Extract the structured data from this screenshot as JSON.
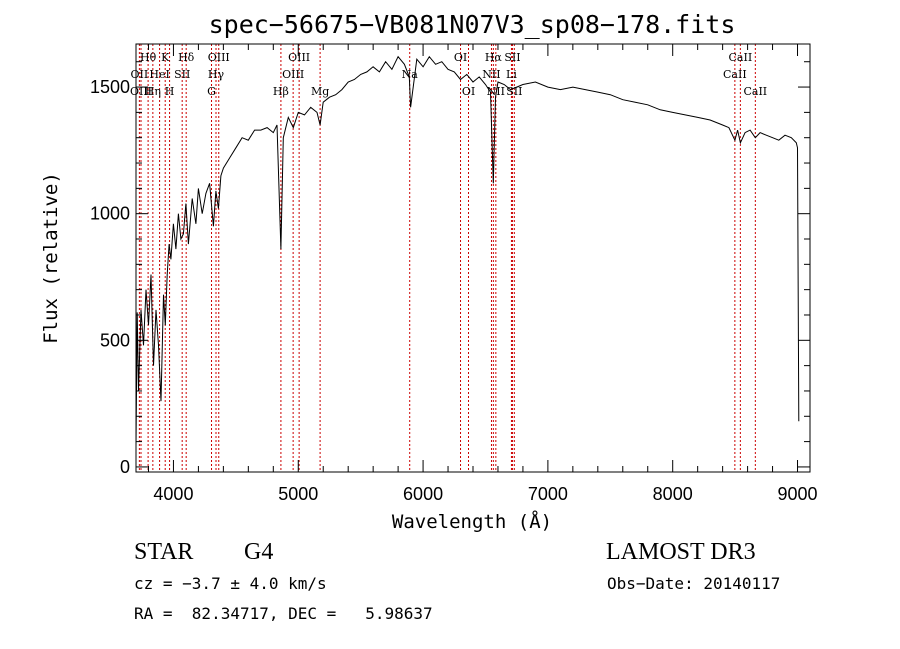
{
  "chart_data": {
    "type": "line",
    "title": "spec−56675−VB081N07V3_sp08−178.fits",
    "xlabel": "Wavelength (Å)",
    "ylabel": "Flux (relative)",
    "xlim": [
      3700,
      9100
    ],
    "ylim": [
      -20,
      1670
    ],
    "x_ticks": [
      4000,
      5000,
      6000,
      7000,
      8000,
      9000
    ],
    "y_ticks": [
      0,
      500,
      1000,
      1500
    ],
    "x_minor_step": 200,
    "y_minor_step": 100,
    "series": [
      {
        "name": "flux",
        "x": [
          3700,
          3710,
          3720,
          3740,
          3760,
          3780,
          3800,
          3820,
          3840,
          3860,
          3880,
          3900,
          3920,
          3935,
          3950,
          3965,
          3980,
          4000,
          4020,
          4040,
          4060,
          4080,
          4100,
          4120,
          4150,
          4180,
          4200,
          4230,
          4260,
          4290,
          4320,
          4340,
          4360,
          4380,
          4400,
          4450,
          4500,
          4550,
          4600,
          4650,
          4700,
          4750,
          4800,
          4830,
          4861,
          4880,
          4920,
          4960,
          5000,
          5050,
          5100,
          5150,
          5175,
          5200,
          5250,
          5300,
          5350,
          5400,
          5450,
          5500,
          5550,
          5600,
          5650,
          5700,
          5750,
          5800,
          5850,
          5890,
          5900,
          5950,
          6000,
          6050,
          6100,
          6150,
          6200,
          6250,
          6300,
          6350,
          6400,
          6450,
          6500,
          6540,
          6563,
          6580,
          6600,
          6650,
          6700,
          6750,
          6800,
          6900,
          7000,
          7100,
          7200,
          7300,
          7400,
          7500,
          7600,
          7700,
          7800,
          7900,
          8000,
          8100,
          8200,
          8300,
          8400,
          8450,
          8498,
          8520,
          8542,
          8580,
          8620,
          8662,
          8700,
          8750,
          8800,
          8850,
          8900,
          8950,
          8990,
          9000,
          9010
        ],
        "y": [
          80,
          610,
          300,
          620,
          480,
          700,
          560,
          760,
          400,
          620,
          480,
          260,
          680,
          560,
          760,
          880,
          820,
          960,
          860,
          1000,
          900,
          920,
          1040,
          880,
          1060,
          960,
          1100,
          1000,
          1080,
          1120,
          950,
          1090,
          1020,
          1150,
          1180,
          1220,
          1260,
          1300,
          1290,
          1330,
          1330,
          1340,
          1320,
          1350,
          860,
          1300,
          1380,
          1340,
          1400,
          1390,
          1420,
          1400,
          1350,
          1440,
          1460,
          1470,
          1490,
          1520,
          1530,
          1550,
          1560,
          1580,
          1560,
          1600,
          1570,
          1620,
          1590,
          1540,
          1420,
          1610,
          1580,
          1620,
          1590,
          1600,
          1570,
          1560,
          1530,
          1550,
          1520,
          1540,
          1510,
          1480,
          1120,
          1460,
          1520,
          1510,
          1490,
          1500,
          1510,
          1520,
          1500,
          1490,
          1500,
          1490,
          1480,
          1470,
          1450,
          1440,
          1430,
          1410,
          1400,
          1390,
          1380,
          1370,
          1350,
          1340,
          1290,
          1330,
          1280,
          1320,
          1330,
          1300,
          1320,
          1310,
          1300,
          1290,
          1310,
          1300,
          1280,
          1260,
          180
        ]
      }
    ],
    "line_markers": [
      {
        "name": "Hθ",
        "x": 3797,
        "row": 1
      },
      {
        "name": "OII",
        "x": 3727,
        "row": 2
      },
      {
        "name": "OIII",
        "x": 3740,
        "row": 3
      },
      {
        "name": "Hη",
        "x": 3835,
        "row": 3
      },
      {
        "name": "K",
        "x": 3934,
        "row": 1
      },
      {
        "name": "HeI",
        "x": 3889,
        "row": 2
      },
      {
        "name": "SII",
        "x": 4070,
        "row": 2
      },
      {
        "name": "H",
        "x": 3969,
        "row": 3
      },
      {
        "name": "Hδ",
        "x": 4102,
        "row": 1
      },
      {
        "name": "OIII",
        "x": 4363,
        "row": 1
      },
      {
        "name": "Hγ",
        "x": 4341,
        "row": 2
      },
      {
        "name": "G",
        "x": 4305,
        "row": 3
      },
      {
        "name": "OIII",
        "x": 5007,
        "row": 1
      },
      {
        "name": "OIII",
        "x": 4959,
        "row": 2
      },
      {
        "name": "Hβ",
        "x": 4861,
        "row": 3
      },
      {
        "name": "Mg",
        "x": 5175,
        "row": 3
      },
      {
        "name": "Na",
        "x": 5893,
        "row": 2
      },
      {
        "name": "OI",
        "x": 6300,
        "row": 1
      },
      {
        "name": "OI",
        "x": 6364,
        "row": 3
      },
      {
        "name": "Hα",
        "x": 6563,
        "row": 1
      },
      {
        "name": "SII",
        "x": 6716,
        "row": 1
      },
      {
        "name": "NII",
        "x": 6548,
        "row": 2
      },
      {
        "name": "Li",
        "x": 6708,
        "row": 2
      },
      {
        "name": "NII",
        "x": 6583,
        "row": 3
      },
      {
        "name": "SII",
        "x": 6731,
        "row": 3
      },
      {
        "name": "CaII",
        "x": 8542,
        "row": 1
      },
      {
        "name": "CaII",
        "x": 8498,
        "row": 2
      },
      {
        "name": "CaII",
        "x": 8662,
        "row": 3
      }
    ]
  },
  "info": {
    "object_class": "STAR",
    "subclass": "G4",
    "survey": "LAMOST DR3",
    "redshift": "cz = −3.7 ± 4.0 km/s",
    "obs_date": "Obs−Date: 20140117",
    "coords": "RA =  82.34717, DEC =   5.98637"
  }
}
